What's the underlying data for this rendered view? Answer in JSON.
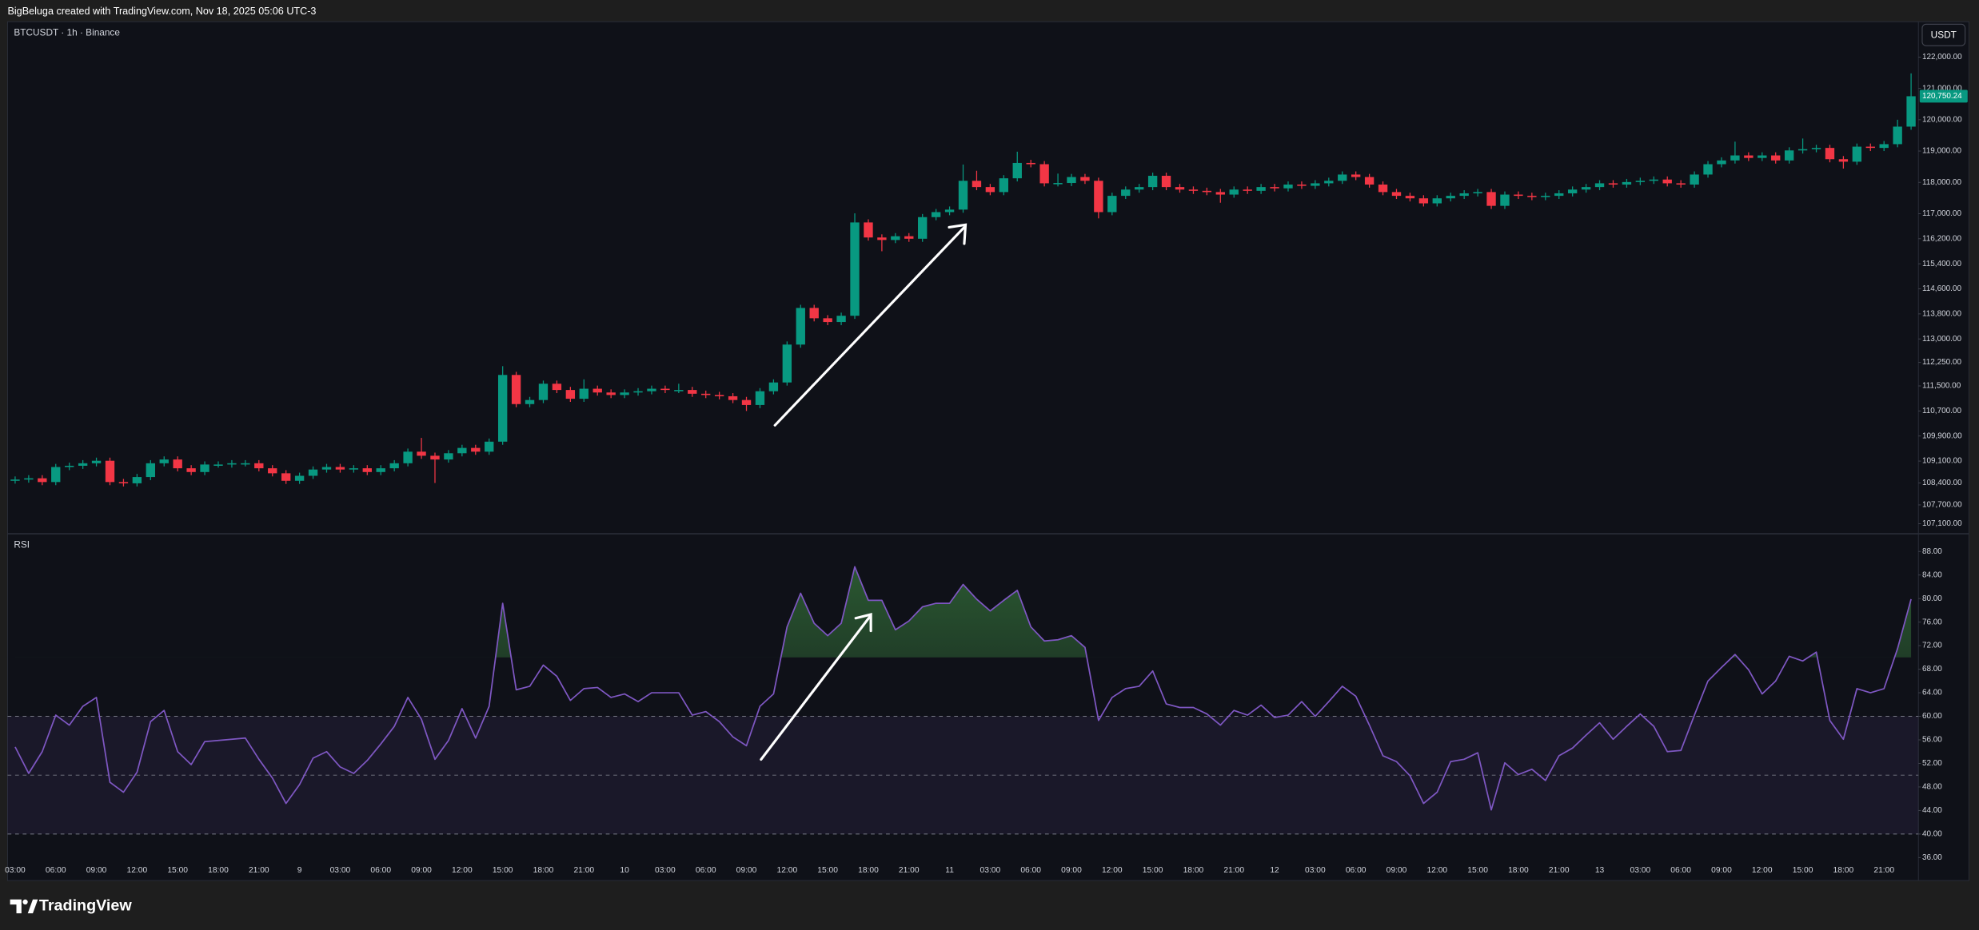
{
  "header": {
    "attribution": "BigBeluga created with TradingView.com, Nov 18, 2025 05:06 UTC-3"
  },
  "footer": {
    "brand": "TradingView"
  },
  "chart_data": [
    {
      "type": "candlestick",
      "title": "BTCUSDT · 1h · Binance",
      "currency": "USDT",
      "up_color": "#089981",
      "down_color": "#f23645",
      "last_price": {
        "value": 120750.24,
        "label": "120,750.24"
      },
      "ylim": [
        106820,
        123130
      ],
      "yticks": [
        {
          "value": 122000,
          "label": "122,000.00"
        },
        {
          "value": 121000,
          "label": "121,000.00"
        },
        {
          "value": 120000,
          "label": "120,000.00"
        },
        {
          "value": 119000,
          "label": "119,000.00"
        },
        {
          "value": 118000,
          "label": "118,000.00"
        },
        {
          "value": 117000,
          "label": "117,000.00"
        },
        {
          "value": 116200,
          "label": "116,200.00"
        },
        {
          "value": 115400,
          "label": "115,400.00"
        },
        {
          "value": 114600,
          "label": "114,600.00"
        },
        {
          "value": 113800,
          "label": "113,800.00"
        },
        {
          "value": 113000,
          "label": "113,000.00"
        },
        {
          "value": 112250,
          "label": "112,250.00"
        },
        {
          "value": 111500,
          "label": "111,500.00"
        },
        {
          "value": 110700,
          "label": "110,700.00"
        },
        {
          "value": 109900,
          "label": "109,900.00"
        },
        {
          "value": 109100,
          "label": "109,100.00"
        },
        {
          "value": 108400,
          "label": "108,400.00"
        },
        {
          "value": 107700,
          "label": "107,700.00"
        },
        {
          "value": 107100,
          "label": "107,100.00"
        }
      ],
      "categories": [
        "03:00",
        null,
        null,
        "06:00",
        null,
        null,
        "09:00",
        null,
        null,
        "12:00",
        null,
        null,
        "15:00",
        null,
        null,
        "18:00",
        null,
        null,
        "21:00",
        null,
        null,
        "9",
        null,
        null,
        "03:00",
        null,
        null,
        "06:00",
        null,
        null,
        "09:00",
        null,
        null,
        "12:00",
        null,
        null,
        "15:00",
        null,
        null,
        "18:00",
        null,
        null,
        "21:00",
        null,
        null,
        "10",
        null,
        null,
        "03:00",
        null,
        null,
        "06:00",
        null,
        null,
        "09:00",
        null,
        null,
        "12:00",
        null,
        null,
        "15:00",
        null,
        null,
        "18:00",
        null,
        null,
        "21:00",
        null,
        null,
        "11",
        null,
        null,
        "03:00",
        null,
        null,
        "06:00",
        null,
        null,
        "09:00",
        null,
        null,
        "12:00",
        null,
        null,
        "15:00",
        null,
        null,
        "18:00",
        null,
        null,
        "21:00",
        null,
        null,
        "12",
        null,
        null,
        "03:00",
        null,
        null,
        "06:00",
        null,
        null,
        "09:00",
        null,
        null,
        "12:00",
        null,
        null,
        "15:00",
        null,
        null,
        "18:00",
        null,
        null,
        "21:00",
        null,
        null,
        "13",
        null,
        null,
        "03:00",
        null,
        null,
        "06:00",
        null,
        null,
        "09:00",
        null,
        null,
        "12:00",
        null,
        null,
        "15:00",
        null,
        null,
        "18:00",
        null,
        null,
        "21:00",
        null,
        null
      ],
      "open": [
        108480,
        108510,
        108550,
        108430,
        108910,
        108950,
        109030,
        109110,
        108430,
        108390,
        108590,
        109030,
        109150,
        108870,
        108750,
        108990,
        108990,
        109030,
        109030,
        108870,
        108710,
        108470,
        108630,
        108830,
        108910,
        108830,
        108870,
        108750,
        108870,
        109030,
        109400,
        109270,
        109150,
        109350,
        109520,
        109400,
        109720,
        111850,
        110920,
        111050,
        111570,
        111370,
        111090,
        111410,
        111290,
        111210,
        111290,
        111330,
        111410,
        111370,
        111370,
        111250,
        111210,
        111170,
        111050,
        110890,
        111330,
        111610,
        112820,
        113990,
        113660,
        113540,
        113740,
        116720,
        116240,
        116160,
        116280,
        116200,
        116890,
        117050,
        117130,
        118050,
        117850,
        117690,
        118130,
        118620,
        118580,
        117970,
        117980,
        118170,
        118050,
        117050,
        117570,
        117770,
        117850,
        118210,
        117850,
        117770,
        117730,
        117690,
        117610,
        117770,
        117730,
        117850,
        117810,
        117930,
        117890,
        117970,
        118050,
        118250,
        118170,
        117930,
        117690,
        117570,
        117490,
        117330,
        117490,
        117570,
        117650,
        117690,
        117250,
        117610,
        117570,
        117530,
        117570,
        117650,
        117770,
        117850,
        117970,
        117930,
        118010,
        118050,
        118090,
        117970,
        117930,
        118250,
        118580,
        118700,
        118860,
        118780,
        118860,
        118700,
        119020,
        119060,
        119100,
        118740,
        118660,
        119140,
        119100,
        119220,
        119780
      ],
      "high": [
        108610,
        108650,
        108650,
        109010,
        109050,
        109130,
        109210,
        109210,
        108530,
        108690,
        109130,
        109250,
        109250,
        108970,
        109090,
        109090,
        109130,
        109130,
        109130,
        108970,
        108810,
        108730,
        108930,
        109010,
        109010,
        108970,
        108970,
        108970,
        109130,
        109500,
        109840,
        109370,
        109450,
        109620,
        109620,
        109820,
        112130,
        111950,
        111150,
        111670,
        111670,
        111470,
        111710,
        111510,
        111390,
        111390,
        111430,
        111510,
        111510,
        111570,
        111470,
        111350,
        111310,
        111270,
        111150,
        111430,
        111710,
        112920,
        114090,
        114090,
        113760,
        113840,
        117010,
        116820,
        116340,
        116380,
        116380,
        116990,
        117150,
        117230,
        118570,
        118370,
        117950,
        118230,
        118980,
        118720,
        118680,
        118280,
        118270,
        118270,
        118150,
        117670,
        117870,
        117950,
        118310,
        118310,
        117950,
        117870,
        117830,
        117790,
        117870,
        117870,
        117950,
        117950,
        118030,
        118030,
        118070,
        118150,
        118350,
        118350,
        118270,
        118030,
        117790,
        117670,
        117590,
        117590,
        117670,
        117750,
        117790,
        117790,
        117710,
        117710,
        117670,
        117670,
        117750,
        117870,
        117950,
        118070,
        118070,
        118110,
        118150,
        118190,
        118190,
        118070,
        118350,
        118680,
        118800,
        119300,
        118960,
        118960,
        118960,
        119120,
        119400,
        119200,
        119200,
        118840,
        119240,
        119240,
        119320,
        120000,
        121480
      ],
      "low": [
        108380,
        108410,
        108330,
        108330,
        108810,
        108850,
        108930,
        108330,
        108290,
        108290,
        108490,
        108930,
        108770,
        108650,
        108650,
        108890,
        108890,
        108930,
        108770,
        108610,
        108370,
        108370,
        108530,
        108730,
        108730,
        108730,
        108650,
        108650,
        108770,
        108930,
        109170,
        108400,
        109050,
        109250,
        109300,
        109300,
        109620,
        110820,
        110820,
        110950,
        111270,
        110990,
        110990,
        111190,
        111110,
        111110,
        111190,
        111230,
        111270,
        111270,
        111150,
        111110,
        111070,
        110950,
        110700,
        110790,
        111230,
        111510,
        112720,
        113560,
        113440,
        113440,
        113640,
        116140,
        115800,
        116060,
        116100,
        116100,
        116790,
        116950,
        117030,
        117750,
        117590,
        117590,
        118030,
        118480,
        117870,
        117870,
        117880,
        117950,
        116850,
        116950,
        117470,
        117670,
        117750,
        117750,
        117670,
        117630,
        117590,
        117350,
        117510,
        117630,
        117630,
        117710,
        117710,
        117790,
        117790,
        117870,
        117950,
        118070,
        117830,
        117590,
        117470,
        117390,
        117230,
        117230,
        117390,
        117470,
        117550,
        117150,
        117150,
        117470,
        117430,
        117430,
        117470,
        117550,
        117670,
        117750,
        117830,
        117830,
        117910,
        117950,
        117870,
        117830,
        117830,
        118150,
        118480,
        118600,
        118680,
        118680,
        118600,
        118600,
        118920,
        118960,
        118640,
        118440,
        118560,
        119000,
        119000,
        119120,
        119680
      ],
      "close": [
        108510,
        108550,
        108430,
        108910,
        108950,
        109030,
        109110,
        108430,
        108390,
        108590,
        109030,
        109150,
        108870,
        108750,
        108990,
        108990,
        109030,
        109030,
        108870,
        108710,
        108470,
        108630,
        108830,
        108910,
        108830,
        108870,
        108750,
        108870,
        109030,
        109400,
        109270,
        109150,
        109350,
        109520,
        109400,
        109720,
        111850,
        110920,
        111050,
        111570,
        111370,
        111090,
        111410,
        111290,
        111210,
        111290,
        111330,
        111410,
        111370,
        111370,
        111250,
        111210,
        111170,
        111050,
        110890,
        111330,
        111610,
        112820,
        113990,
        113660,
        113540,
        113740,
        116720,
        116240,
        116160,
        116280,
        116200,
        116890,
        117050,
        117130,
        118050,
        117850,
        117690,
        118130,
        118620,
        118580,
        117970,
        117980,
        118170,
        118050,
        117050,
        117570,
        117770,
        117850,
        118210,
        117850,
        117770,
        117730,
        117690,
        117610,
        117770,
        117730,
        117850,
        117810,
        117930,
        117890,
        117970,
        118050,
        118250,
        118170,
        117930,
        117690,
        117570,
        117490,
        117330,
        117490,
        117570,
        117650,
        117690,
        117250,
        117610,
        117570,
        117530,
        117570,
        117650,
        117770,
        117850,
        117970,
        117930,
        118010,
        118050,
        118090,
        117970,
        117930,
        118250,
        118580,
        118700,
        118860,
        118780,
        118860,
        118700,
        119020,
        119060,
        119100,
        118740,
        118660,
        119140,
        119100,
        119220,
        119780,
        120750.24
      ]
    },
    {
      "type": "line",
      "title": "RSI",
      "color": "#7e57c2",
      "overbought": 70,
      "levels": [
        60,
        50,
        40
      ],
      "ylim": [
        32.1,
        90.8
      ],
      "yticks": [
        {
          "value": 88,
          "label": "88.00"
        },
        {
          "value": 84,
          "label": "84.00"
        },
        {
          "value": 80,
          "label": "80.00"
        },
        {
          "value": 76,
          "label": "76.00"
        },
        {
          "value": 72,
          "label": "72.00"
        },
        {
          "value": 68,
          "label": "68.00"
        },
        {
          "value": 64,
          "label": "64.00"
        },
        {
          "value": 60,
          "label": "60.00"
        },
        {
          "value": 56,
          "label": "56.00"
        },
        {
          "value": 52,
          "label": "52.00"
        },
        {
          "value": 48,
          "label": "48.00"
        },
        {
          "value": 44,
          "label": "44.00"
        },
        {
          "value": 40,
          "label": "40.00"
        },
        {
          "value": 36,
          "label": "36.00"
        }
      ],
      "values": [
        54.8,
        50.3,
        54,
        60.2,
        58.5,
        61.7,
        63.2,
        48.8,
        47.1,
        50.5,
        59.1,
        61,
        54,
        51.8,
        55.7,
        55.9,
        56.1,
        56.3,
        52.7,
        49.5,
        45.2,
        48.4,
        52.9,
        54,
        51.4,
        50.3,
        52.5,
        55.3,
        58.3,
        63.2,
        59.5,
        52.7,
        55.9,
        61.3,
        56.3,
        61.7,
        79.2,
        64.5,
        65.1,
        68.7,
        66.8,
        62.7,
        64.7,
        64.9,
        63.2,
        63.8,
        62.5,
        64,
        64,
        64,
        60.2,
        60.8,
        59.1,
        56.5,
        55,
        61.7,
        63.8,
        75.2,
        80.9,
        75.8,
        73.7,
        75.8,
        85.4,
        79.7,
        79.7,
        74.7,
        76.2,
        78.6,
        79.2,
        79.2,
        82.4,
        79.9,
        77.9,
        79.7,
        81.4,
        75.2,
        72.8,
        73,
        73.7,
        71.7,
        59.3,
        63.2,
        64.7,
        65.1,
        67.7,
        62.1,
        61.5,
        61.5,
        60.4,
        58.5,
        61,
        60.2,
        61.9,
        59.8,
        60.2,
        62.5,
        60,
        62.5,
        65.1,
        63.4,
        58.5,
        53.3,
        52.3,
        49.9,
        45.2,
        47.1,
        52.3,
        52.7,
        53.8,
        44.1,
        52.1,
        50.1,
        51,
        49.1,
        53.3,
        54.6,
        56.8,
        58.9,
        56.1,
        58.3,
        60.4,
        58.3,
        54,
        54.2,
        60.2,
        66,
        68.3,
        70.5,
        67.9,
        63.8,
        66,
        70.2,
        69.4,
        70.9,
        59.3,
        56.1,
        64.7,
        64,
        64.7,
        71.5,
        79.9
      ]
    }
  ]
}
